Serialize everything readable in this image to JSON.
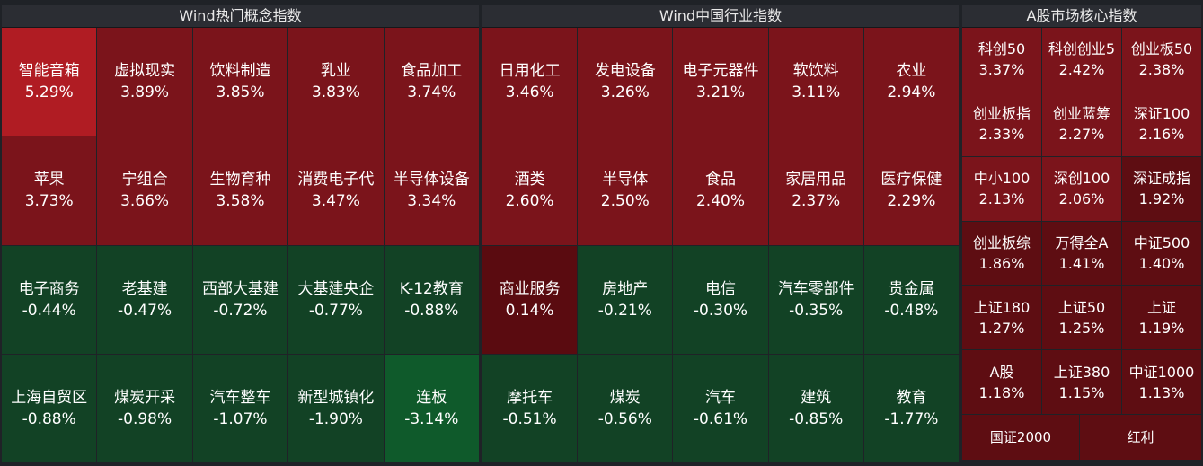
{
  "panels": [
    {
      "title": "Wind热门概念指数",
      "tiles": [
        {
          "name": "智能音箱",
          "pct": "5.29%"
        },
        {
          "name": "虚拟现实",
          "pct": "3.89%"
        },
        {
          "name": "饮料制造",
          "pct": "3.85%"
        },
        {
          "name": "乳业",
          "pct": "3.83%"
        },
        {
          "name": "食品加工",
          "pct": "3.74%"
        },
        {
          "name": "苹果",
          "pct": "3.73%"
        },
        {
          "name": "宁组合",
          "pct": "3.66%"
        },
        {
          "name": "生物育种",
          "pct": "3.58%"
        },
        {
          "name": "消费电子代",
          "pct": "3.47%"
        },
        {
          "name": "半导体设备",
          "pct": "3.34%"
        },
        {
          "name": "电子商务",
          "pct": "-0.44%"
        },
        {
          "name": "老基建",
          "pct": "-0.47%"
        },
        {
          "name": "西部大基建",
          "pct": "-0.72%"
        },
        {
          "name": "大基建央企",
          "pct": "-0.77%"
        },
        {
          "name": "K-12教育",
          "pct": "-0.88%"
        },
        {
          "name": "上海自贸区",
          "pct": "-0.88%"
        },
        {
          "name": "煤炭开采",
          "pct": "-0.98%"
        },
        {
          "name": "汽车整车",
          "pct": "-1.07%"
        },
        {
          "name": "新型城镇化",
          "pct": "-1.90%"
        },
        {
          "name": "连板",
          "pct": "-3.14%"
        }
      ]
    },
    {
      "title": "Wind中国行业指数",
      "tiles": [
        {
          "name": "日用化工",
          "pct": "3.46%"
        },
        {
          "name": "发电设备",
          "pct": "3.26%"
        },
        {
          "name": "电子元器件",
          "pct": "3.21%"
        },
        {
          "name": "软饮料",
          "pct": "3.11%"
        },
        {
          "name": "农业",
          "pct": "2.94%"
        },
        {
          "name": "酒类",
          "pct": "2.60%"
        },
        {
          "name": "半导体",
          "pct": "2.50%"
        },
        {
          "name": "食品",
          "pct": "2.40%"
        },
        {
          "name": "家居用品",
          "pct": "2.37%"
        },
        {
          "name": "医疗保健",
          "pct": "2.29%"
        },
        {
          "name": "商业服务",
          "pct": "0.14%"
        },
        {
          "name": "房地产",
          "pct": "-0.21%"
        },
        {
          "name": "电信",
          "pct": "-0.30%"
        },
        {
          "name": "汽车零部件",
          "pct": "-0.35%"
        },
        {
          "name": "贵金属",
          "pct": "-0.48%"
        },
        {
          "name": "摩托车",
          "pct": "-0.51%"
        },
        {
          "name": "煤炭",
          "pct": "-0.56%"
        },
        {
          "name": "汽车",
          "pct": "-0.61%"
        },
        {
          "name": "建筑",
          "pct": "-0.85%"
        },
        {
          "name": "教育",
          "pct": "-1.77%"
        }
      ]
    },
    {
      "title": "A股市场核心指数",
      "tiles": [
        {
          "name": "科创50",
          "pct": "3.37%"
        },
        {
          "name": "科创创业5",
          "pct": "2.42%"
        },
        {
          "name": "创业板50",
          "pct": "2.38%"
        },
        {
          "name": "创业板指",
          "pct": "2.33%"
        },
        {
          "name": "创业蓝筹",
          "pct": "2.27%"
        },
        {
          "name": "深证100",
          "pct": "2.16%"
        },
        {
          "name": "中小100",
          "pct": "2.13%"
        },
        {
          "name": "深创100",
          "pct": "2.06%"
        },
        {
          "name": "深证成指",
          "pct": "1.92%"
        },
        {
          "name": "创业板综",
          "pct": "1.86%"
        },
        {
          "name": "万得全A",
          "pct": "1.41%"
        },
        {
          "name": "中证500",
          "pct": "1.40%"
        },
        {
          "name": "上证180",
          "pct": "1.27%"
        },
        {
          "name": "上证50",
          "pct": "1.25%"
        },
        {
          "name": "上证",
          "pct": "1.19%"
        },
        {
          "name": "A股",
          "pct": "1.18%"
        },
        {
          "name": "上证380",
          "pct": "1.15%"
        },
        {
          "name": "中证1000",
          "pct": "1.13%"
        }
      ],
      "bottom": [
        {
          "name": "国证2000"
        },
        {
          "name": "红利"
        }
      ]
    }
  ],
  "colors": {
    "up_strong": "#b01c23",
    "up": "#7b141b",
    "down": "#124225",
    "down_strong": "#0f5a2b",
    "background": "#1f2227",
    "header": "#2b2d33"
  }
}
